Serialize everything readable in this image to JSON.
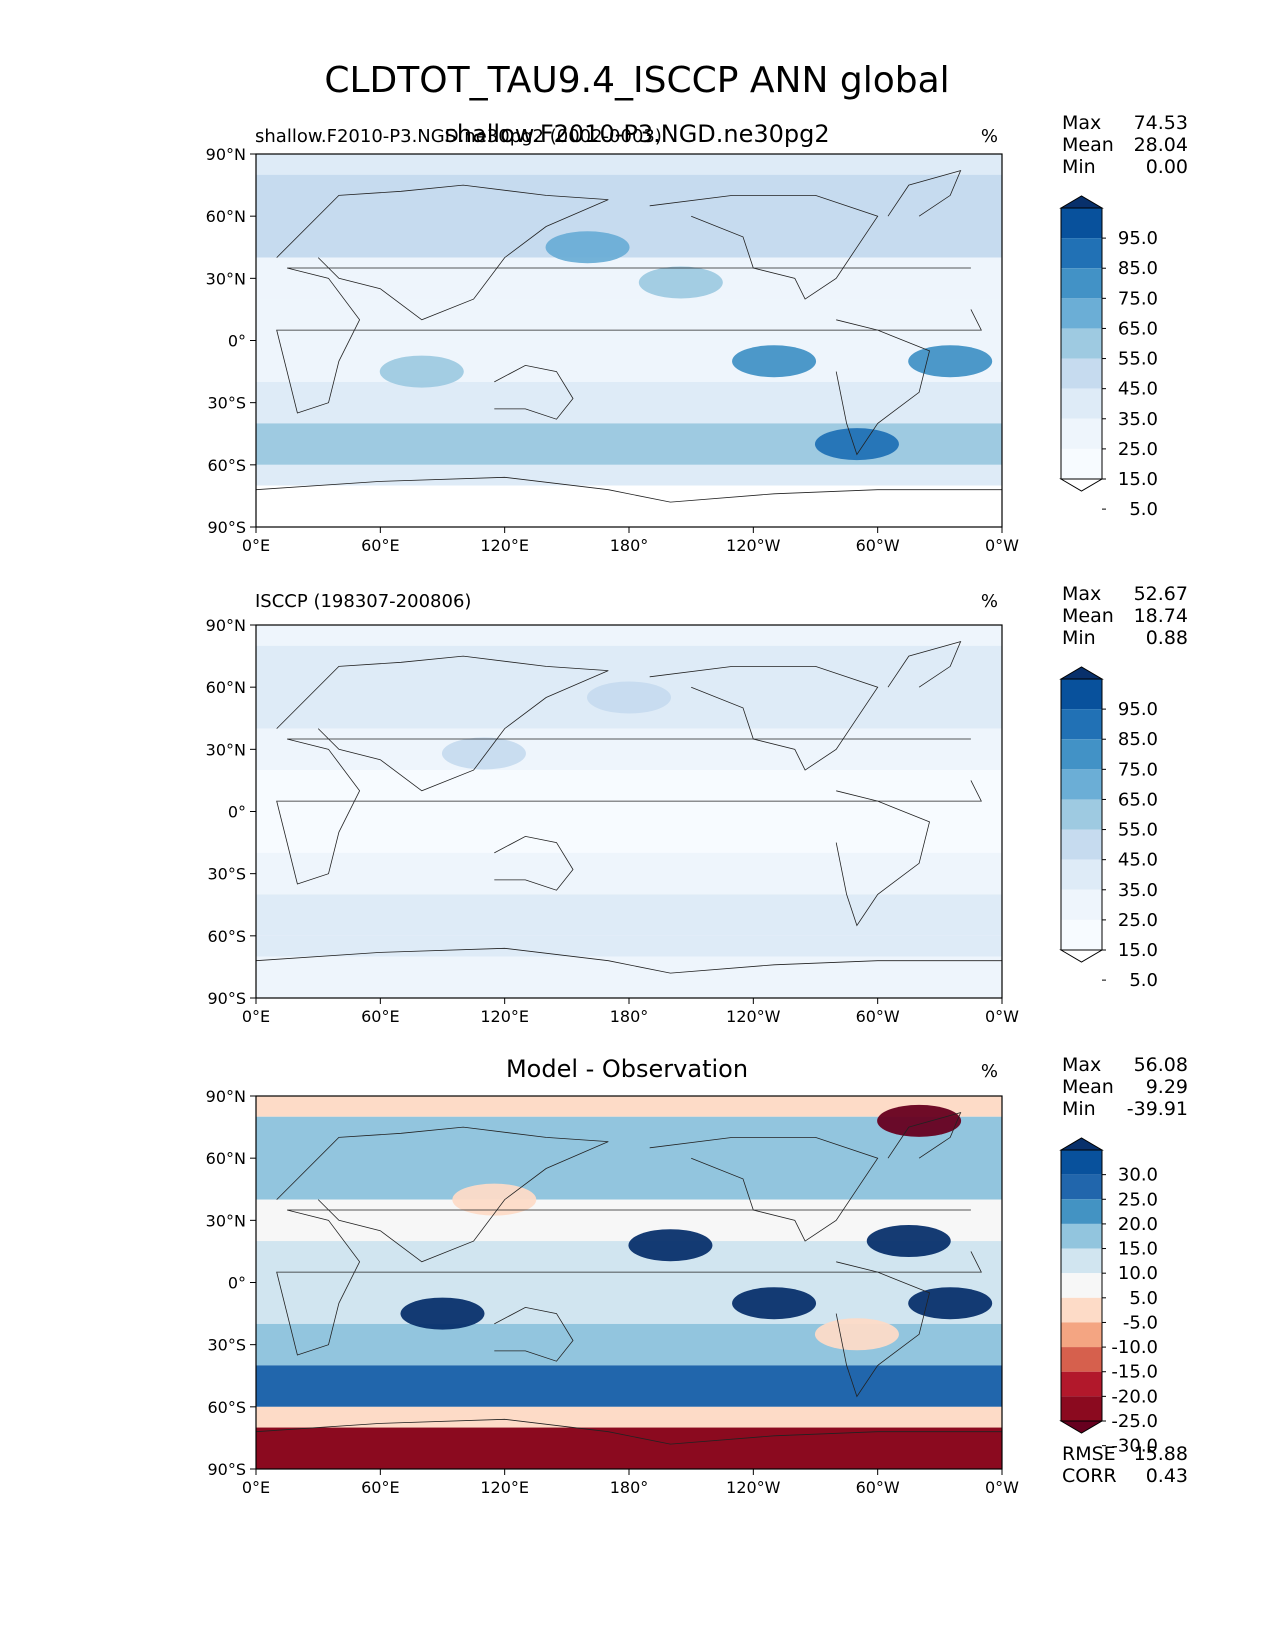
{
  "figure": {
    "title": "CLDTOT_TAU9.4_ISCCP ANN global"
  },
  "chart_data": [
    {
      "type": "heatmap",
      "panel": "test",
      "title": "shallow.F2010-P3.NGD.ne30pg2",
      "subtitle_left": "shallow.F2010-P3.NGD.ne30pg2 (0002-0003)",
      "units": "%",
      "x_ticks": [
        "0°E",
        "60°E",
        "120°E",
        "180°",
        "120°W",
        "60°W",
        "0°W"
      ],
      "y_ticks": [
        "90°N",
        "60°N",
        "30°N",
        "0°",
        "30°S",
        "60°S",
        "90°S"
      ],
      "x_range": [
        0,
        360
      ],
      "y_range": [
        -90,
        90
      ],
      "stats": [
        {
          "label": "Max",
          "value": "74.53"
        },
        {
          "label": "Mean",
          "value": "28.04"
        },
        {
          "label": "Min",
          "value": "0.00"
        }
      ],
      "colorbar": {
        "labels": [
          "95.0",
          "85.0",
          "75.0",
          "65.0",
          "55.0",
          "45.0",
          "35.0",
          "25.0",
          "15.0",
          "5.0"
        ],
        "colors": [
          "#08306b",
          "#08519c",
          "#2171b5",
          "#4292c6",
          "#6baed6",
          "#9ecae1",
          "#c6dbef",
          "#deebf7",
          "#eef5fc",
          "#f7fbff",
          "#ffffff"
        ]
      },
      "bands": [
        {
          "lat": [
            80,
            90
          ],
          "value": 25
        },
        {
          "lat": [
            40,
            80
          ],
          "value": 35
        },
        {
          "lat": [
            20,
            40
          ],
          "value": 15
        },
        {
          "lat": [
            -20,
            20
          ],
          "value": 20
        },
        {
          "lat": [
            -40,
            -20
          ],
          "value": 30
        },
        {
          "lat": [
            -60,
            -40
          ],
          "value": 50
        },
        {
          "lat": [
            -70,
            -60
          ],
          "value": 30
        },
        {
          "lat": [
            -90,
            -70
          ],
          "value": 3
        }
      ],
      "blobs": [
        {
          "lon": 160,
          "lat": 45,
          "value": 55
        },
        {
          "lon": 205,
          "lat": 28,
          "value": 45
        },
        {
          "lon": 250,
          "lat": -10,
          "value": 65
        },
        {
          "lon": 335,
          "lat": -10,
          "value": 65
        },
        {
          "lon": 80,
          "lat": -15,
          "value": 45
        },
        {
          "lon": 290,
          "lat": -50,
          "value": 75
        }
      ]
    },
    {
      "type": "heatmap",
      "panel": "reference",
      "title": "",
      "subtitle_left": "ISCCP (198307-200806)",
      "units": "%",
      "x_ticks": [
        "0°E",
        "60°E",
        "120°E",
        "180°",
        "120°W",
        "60°W",
        "0°W"
      ],
      "y_ticks": [
        "90°N",
        "60°N",
        "30°N",
        "0°",
        "30°S",
        "60°S",
        "90°S"
      ],
      "x_range": [
        0,
        360
      ],
      "y_range": [
        -90,
        90
      ],
      "stats": [
        {
          "label": "Max",
          "value": "52.67"
        },
        {
          "label": "Mean",
          "value": "18.74"
        },
        {
          "label": "Min",
          "value": "0.88"
        }
      ],
      "colorbar": {
        "labels": [
          "95.0",
          "85.0",
          "75.0",
          "65.0",
          "55.0",
          "45.0",
          "35.0",
          "25.0",
          "15.0",
          "5.0"
        ],
        "colors": [
          "#08306b",
          "#08519c",
          "#2171b5",
          "#4292c6",
          "#6baed6",
          "#9ecae1",
          "#c6dbef",
          "#deebf7",
          "#eef5fc",
          "#f7fbff",
          "#ffffff"
        ]
      },
      "bands": [
        {
          "lat": [
            80,
            90
          ],
          "value": 20
        },
        {
          "lat": [
            40,
            80
          ],
          "value": 25
        },
        {
          "lat": [
            20,
            40
          ],
          "value": 15
        },
        {
          "lat": [
            -20,
            20
          ],
          "value": 10
        },
        {
          "lat": [
            -40,
            -20
          ],
          "value": 20
        },
        {
          "lat": [
            -60,
            -40
          ],
          "value": 30
        },
        {
          "lat": [
            -70,
            -60
          ],
          "value": 25
        },
        {
          "lat": [
            -90,
            -70
          ],
          "value": 15
        }
      ],
      "blobs": [
        {
          "lon": 110,
          "lat": 28,
          "value": 35
        },
        {
          "lon": 180,
          "lat": 55,
          "value": 35
        }
      ]
    },
    {
      "type": "heatmap",
      "panel": "difference",
      "title": "Model - Observation",
      "subtitle_left": "",
      "units": "%",
      "x_ticks": [
        "0°E",
        "60°E",
        "120°E",
        "180°",
        "120°W",
        "60°W",
        "0°W"
      ],
      "y_ticks": [
        "90°N",
        "60°N",
        "30°N",
        "0°",
        "30°S",
        "60°S",
        "90°S"
      ],
      "x_range": [
        0,
        360
      ],
      "y_range": [
        -90,
        90
      ],
      "stats": [
        {
          "label": "Max",
          "value": "56.08"
        },
        {
          "label": "Mean",
          "value": "9.29"
        },
        {
          "label": "Min",
          "value": "-39.91"
        }
      ],
      "extra_stats": [
        {
          "label": "RMSE",
          "value": "15.88"
        },
        {
          "label": "CORR",
          "value": "0.43"
        }
      ],
      "colorbar": {
        "labels": [
          "30.0",
          "25.0",
          "20.0",
          "15.0",
          "10.0",
          "5.0",
          "-5.0",
          "-10.0",
          "-15.0",
          "-20.0",
          "-25.0",
          "-30.0"
        ],
        "colors": [
          "#08306b",
          "#08519c",
          "#2166ac",
          "#4393c3",
          "#92c5de",
          "#d1e5f0",
          "#f7f7f7",
          "#fddbc7",
          "#f4a582",
          "#d6604d",
          "#b2182b",
          "#8b0a1f",
          "#67001f"
        ]
      },
      "bands": [
        {
          "lat": [
            80,
            90
          ],
          "value": -7
        },
        {
          "lat": [
            40,
            80
          ],
          "value": 12
        },
        {
          "lat": [
            20,
            40
          ],
          "value": 3
        },
        {
          "lat": [
            -20,
            20
          ],
          "value": 8
        },
        {
          "lat": [
            -40,
            -20
          ],
          "value": 12
        },
        {
          "lat": [
            -60,
            -40
          ],
          "value": 22
        },
        {
          "lat": [
            -70,
            -60
          ],
          "value": -8
        },
        {
          "lat": [
            -90,
            -70
          ],
          "value": -28
        }
      ],
      "blobs": [
        {
          "lon": 200,
          "lat": 18,
          "value": 32
        },
        {
          "lon": 250,
          "lat": -10,
          "value": 35
        },
        {
          "lon": 335,
          "lat": -10,
          "value": 35
        },
        {
          "lon": 315,
          "lat": 20,
          "value": 32
        },
        {
          "lon": 90,
          "lat": -15,
          "value": 30
        },
        {
          "lon": 320,
          "lat": 78,
          "value": -35
        },
        {
          "lon": 115,
          "lat": 40,
          "value": -8
        },
        {
          "lon": 290,
          "lat": -25,
          "value": -10
        }
      ]
    }
  ]
}
